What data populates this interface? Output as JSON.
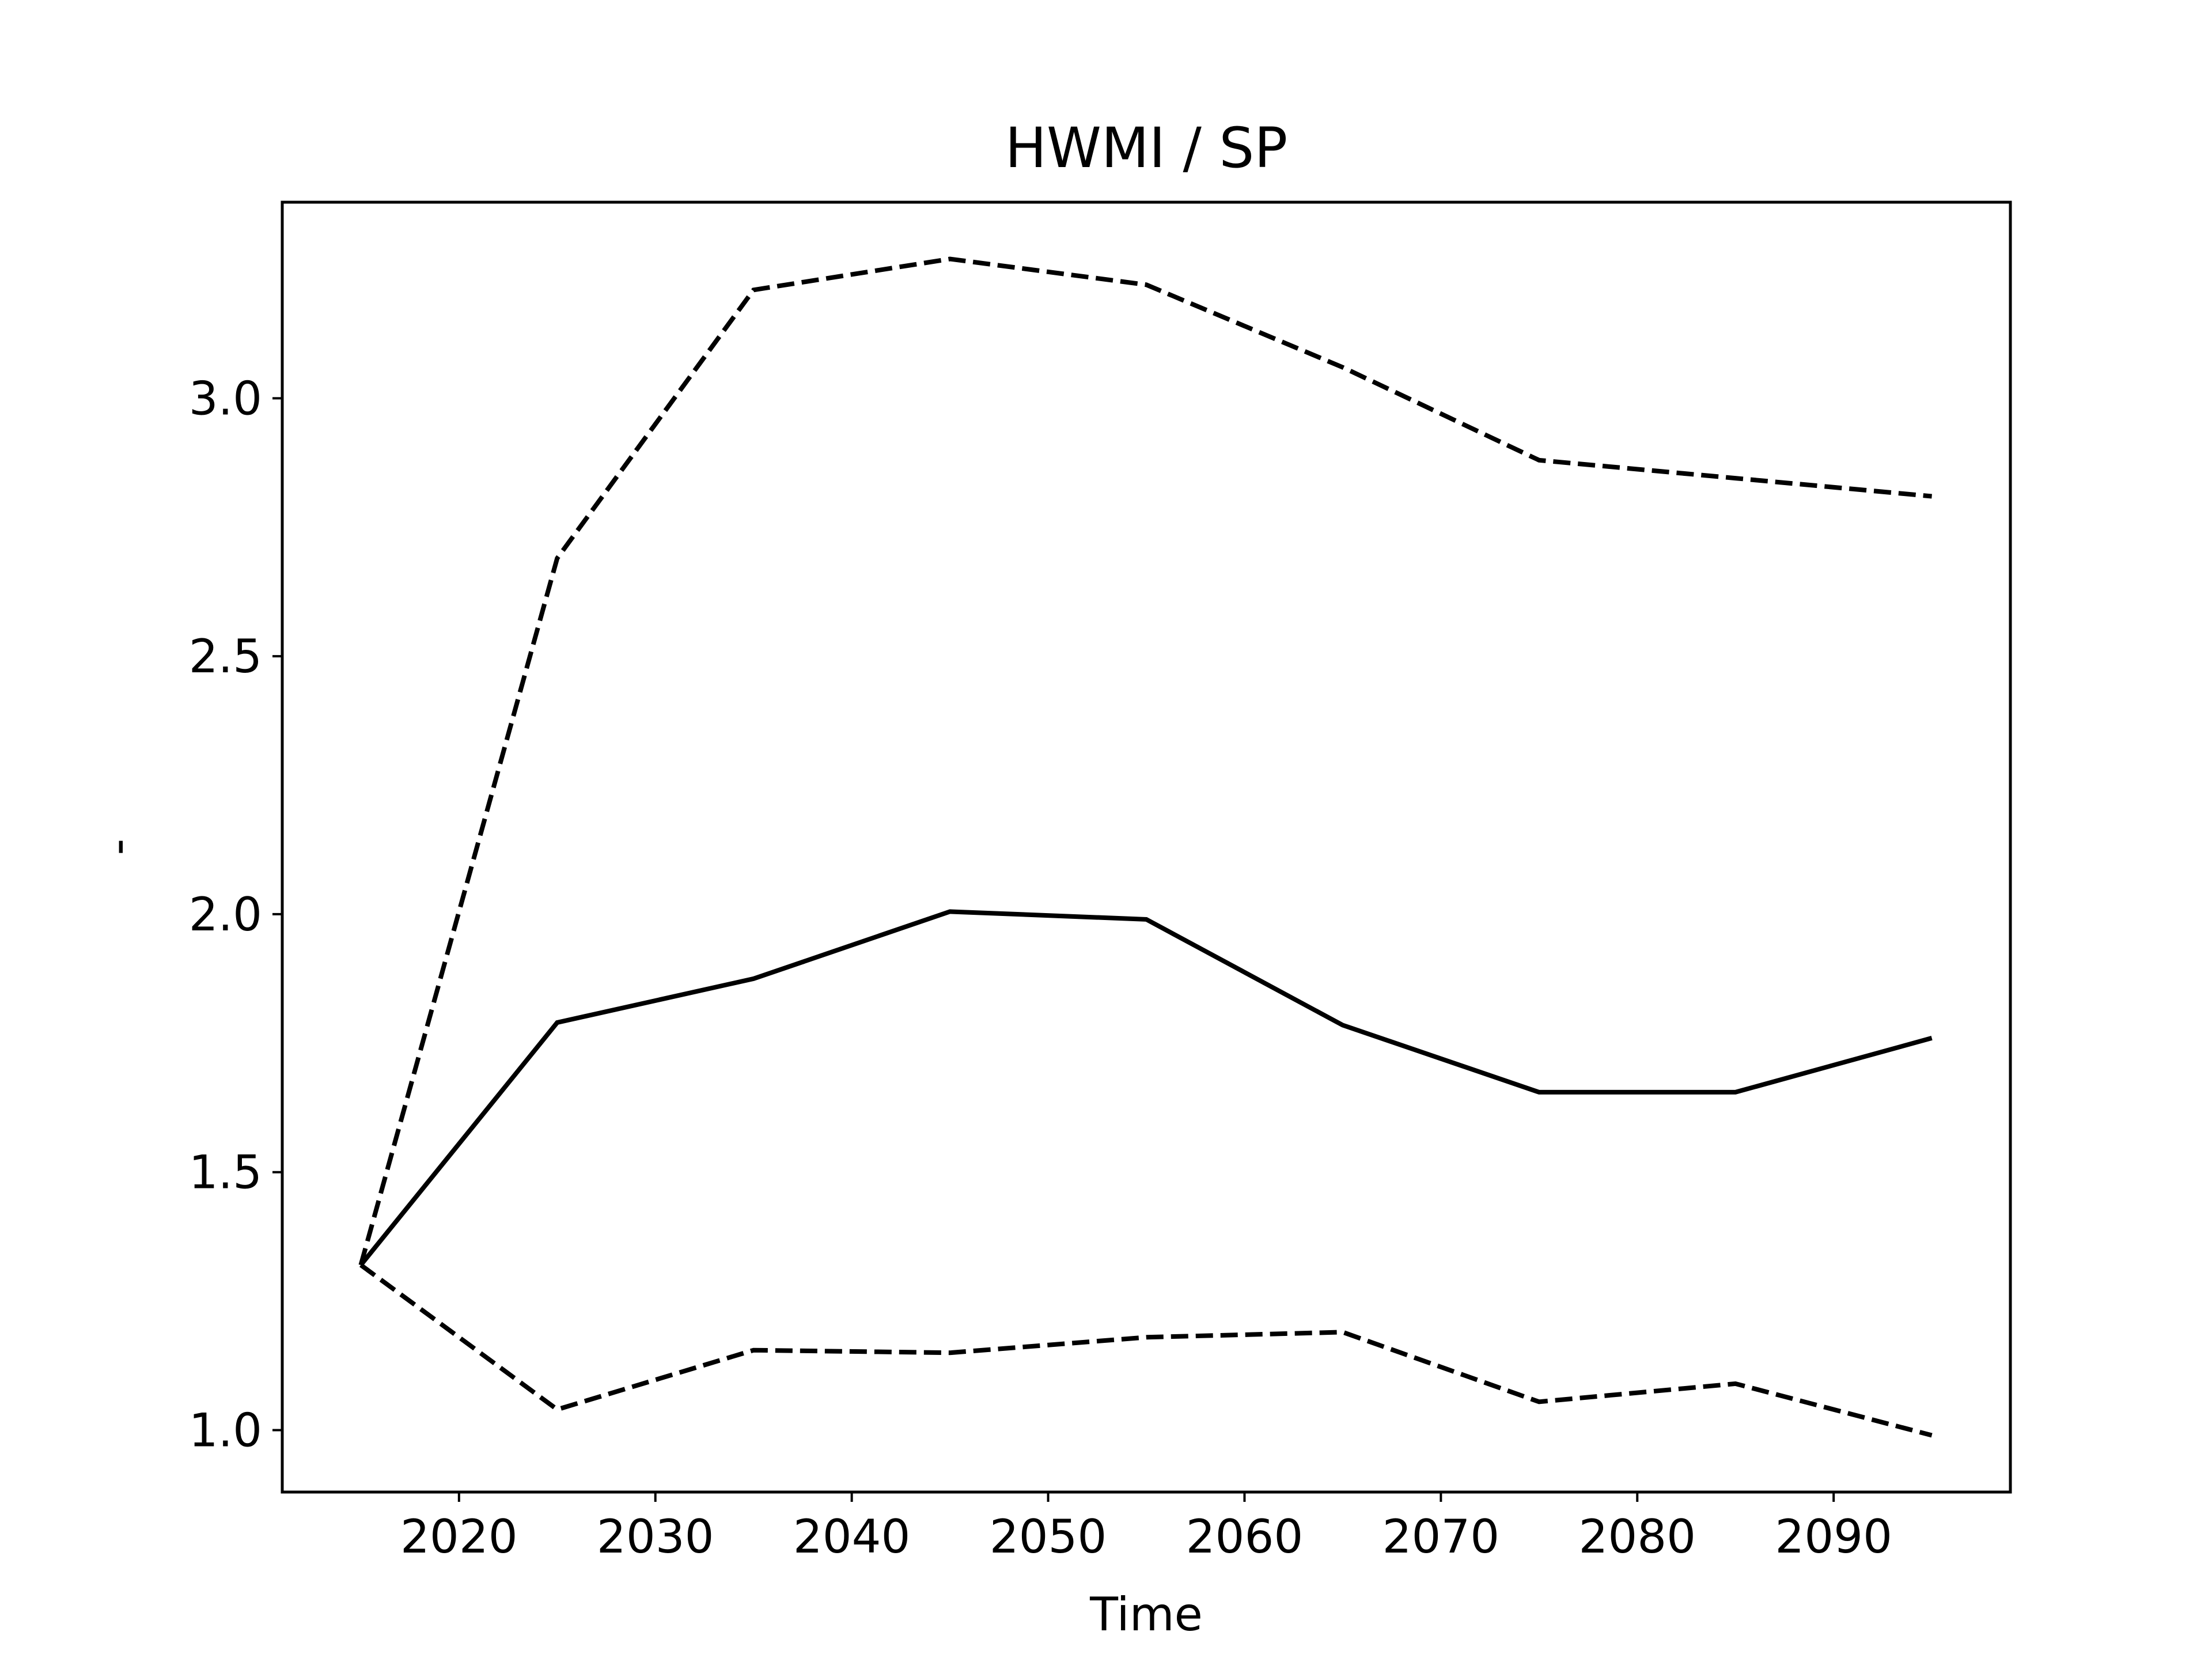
{
  "chart_data": {
    "type": "line",
    "title": "HWMI / SP",
    "xlabel": "Time",
    "ylabel": "-",
    "x": [
      2015,
      2025,
      2035,
      2045,
      2055,
      2065,
      2075,
      2085,
      2095
    ],
    "series": [
      {
        "style": "solid",
        "color": "#000000",
        "values": [
          1.32,
          1.79,
          1.875,
          2.005,
          1.99,
          1.785,
          1.655,
          1.655,
          1.76
        ]
      },
      {
        "style": "dashed",
        "color": "#000000",
        "values": [
          1.32,
          2.69,
          3.21,
          3.27,
          3.22,
          3.06,
          2.88,
          2.845,
          2.81
        ]
      },
      {
        "style": "dashed",
        "color": "#000000",
        "values": [
          1.32,
          1.04,
          1.155,
          1.15,
          1.18,
          1.19,
          1.055,
          1.09,
          0.99
        ]
      }
    ],
    "xticks": [
      2020,
      2030,
      2040,
      2050,
      2060,
      2070,
      2080,
      2090
    ],
    "xtick_labels": [
      "2020",
      "2030",
      "2040",
      "2050",
      "2060",
      "2070",
      "2080",
      "2090"
    ],
    "yticks": [
      1.0,
      1.5,
      2.0,
      2.5,
      3.0
    ],
    "ytick_labels": [
      "1.0",
      "1.5",
      "2.0",
      "2.5",
      "3.0"
    ],
    "xlim": [
      2011,
      2099
    ],
    "ylim": [
      0.88,
      3.38
    ],
    "grid": false,
    "legend": "none"
  }
}
